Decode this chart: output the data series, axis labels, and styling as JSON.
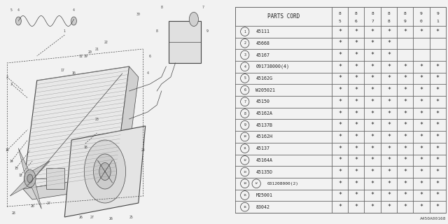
{
  "bg_color": "#f2f2f2",
  "header_cols": [
    "PARTS CORD",
    "8\n5",
    "8\n6",
    "8\n7",
    "8\n8",
    "8\n9",
    "9\n0",
    "9\n1"
  ],
  "rows": [
    [
      1,
      "45111",
      true,
      true,
      true,
      true,
      true,
      true,
      true
    ],
    [
      2,
      "45668",
      true,
      true,
      true,
      true,
      false,
      false,
      false
    ],
    [
      3,
      "45167",
      true,
      true,
      true,
      true,
      false,
      false,
      false
    ],
    [
      4,
      "091738000(4)",
      true,
      true,
      true,
      true,
      true,
      true,
      true
    ],
    [
      5,
      "45162G",
      true,
      true,
      true,
      true,
      true,
      true,
      true
    ],
    [
      6,
      "W205021",
      true,
      true,
      true,
      true,
      true,
      true,
      true
    ],
    [
      7,
      "45150",
      true,
      true,
      true,
      true,
      true,
      true,
      true
    ],
    [
      8,
      "45162A",
      true,
      true,
      true,
      true,
      true,
      true,
      true
    ],
    [
      9,
      "45137B",
      true,
      true,
      true,
      true,
      true,
      true,
      true
    ],
    [
      10,
      "45162H",
      true,
      true,
      true,
      true,
      true,
      true,
      true
    ],
    [
      11,
      "45137",
      true,
      true,
      true,
      true,
      true,
      true,
      true
    ],
    [
      12,
      "45164A",
      true,
      true,
      true,
      true,
      true,
      true,
      true
    ],
    [
      13,
      "45135D",
      true,
      true,
      true,
      true,
      true,
      true,
      true
    ],
    [
      14,
      "W031208000(2)",
      true,
      true,
      true,
      true,
      true,
      true,
      true
    ],
    [
      15,
      "M25001",
      true,
      true,
      true,
      true,
      true,
      true,
      true
    ],
    [
      16,
      "83042",
      true,
      true,
      true,
      true,
      true,
      true,
      true
    ]
  ],
  "footer": "A450A00168",
  "line_color": "#444444",
  "table_line_color": "#666666",
  "bg_table": "#f2f2f2"
}
